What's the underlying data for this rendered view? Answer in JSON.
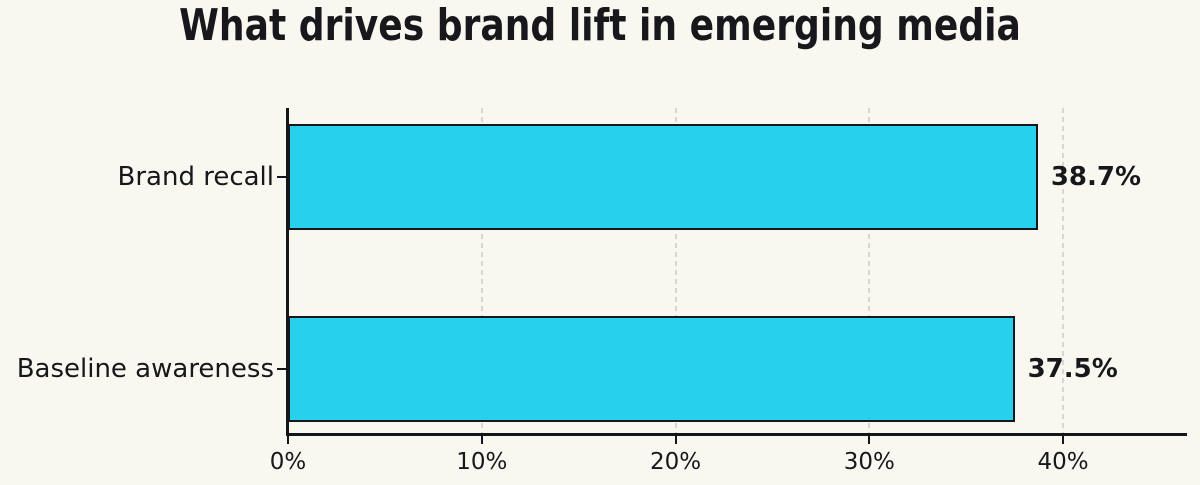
{
  "chart_data": {
    "type": "bar",
    "orientation": "horizontal",
    "title": "What drives brand lift in emerging media",
    "categories": [
      "Brand recall",
      "Baseline awareness"
    ],
    "values": [
      38.7,
      37.5
    ],
    "value_labels": [
      "38.7%",
      "37.5%"
    ],
    "xlabel": "",
    "ylabel": "",
    "xlim": [
      0,
      46.4
    ],
    "xticks": [
      0,
      10,
      20,
      30,
      40
    ],
    "xtick_labels": [
      "0%",
      "10%",
      "20%",
      "30%",
      "40%"
    ],
    "grid": "vertical dashed gridlines at x ticks",
    "legend_position": "none"
  },
  "colors": {
    "background": "#f9f8f0",
    "bar_fill": "#25d1ec",
    "bar_border": "#15151c",
    "axis": "#15151c",
    "text": "#17171c",
    "grid": "#d7d7cf"
  }
}
